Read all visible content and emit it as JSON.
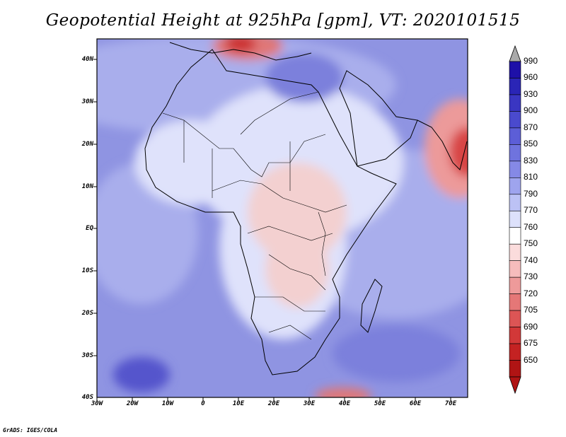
{
  "title": "Geopotential Height at 925hPa [gpm], VT: 2020101515",
  "credit": "GrADS: IGES/COLA",
  "map": {
    "region": "Africa",
    "lat_labels": [
      "40N",
      "30N",
      "20N",
      "10N",
      "EQ",
      "10S",
      "20S",
      "30S",
      "40S"
    ],
    "lon_labels": [
      "30W",
      "20W",
      "10W",
      "0",
      "10E",
      "20E",
      "30E",
      "40E",
      "50E",
      "60E",
      "70E"
    ]
  },
  "colorbar": {
    "labels": [
      "990",
      "960",
      "930",
      "900",
      "870",
      "850",
      "830",
      "810",
      "790",
      "770",
      "760",
      "750",
      "740",
      "730",
      "720",
      "705",
      "690",
      "675",
      "650"
    ],
    "colors": [
      "#aaaaaa",
      "#1e10a8",
      "#2a25b6",
      "#3a36c2",
      "#4a4ace",
      "#5c5ed7",
      "#6f73de",
      "#8589e6",
      "#9ea4ee",
      "#bcc2f5",
      "#dde1fb",
      "#ffffff",
      "#fbdcdc",
      "#f6bcbc",
      "#ee9a9a",
      "#e57777",
      "#dc5555",
      "#d23838",
      "#c42222",
      "#b01414"
    ]
  },
  "legend_colors": {
    "ocean": "#8f94e2",
    "ocean_light": "#a9aeec",
    "land_light": "#dfe2fb",
    "warm": "#f3b3b3",
    "hot": "#dd4c4c"
  }
}
